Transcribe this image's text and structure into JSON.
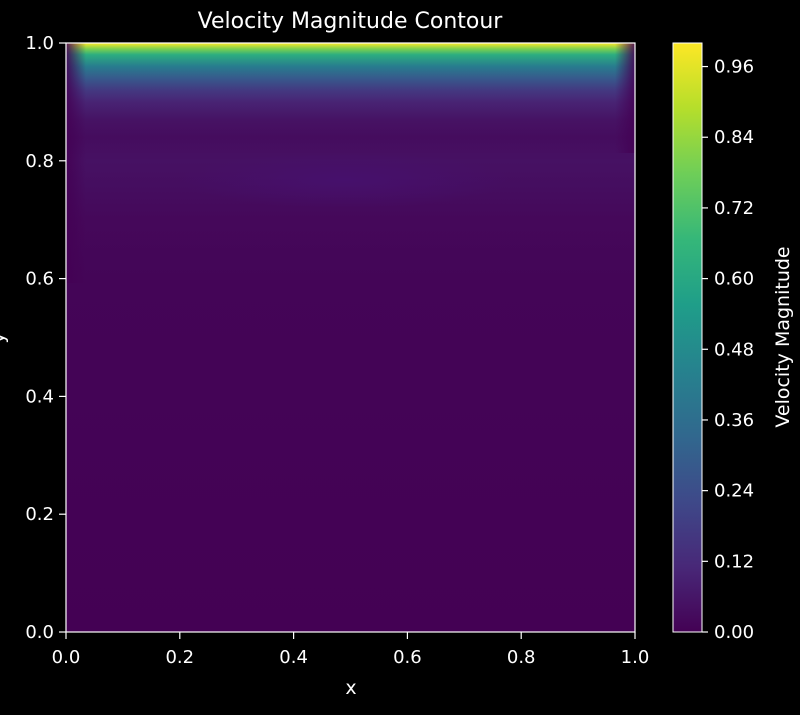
{
  "chart_data": {
    "type": "heatmap",
    "subtype": "filled-contour",
    "title": "Velocity Magnitude Contour",
    "xlabel": "x",
    "ylabel": "y",
    "xlim": [
      0.0,
      1.0
    ],
    "ylim": [
      0.0,
      1.0
    ],
    "x_ticks": [
      "0.0",
      "0.2",
      "0.4",
      "0.6",
      "0.8",
      "1.0"
    ],
    "y_ticks": [
      "0.0",
      "0.2",
      "0.4",
      "0.6",
      "0.8",
      "1.0"
    ],
    "colorbar": {
      "label": "Velocity Magnitude",
      "range": [
        0.0,
        1.0
      ],
      "ticks": [
        "0.00",
        "0.12",
        "0.24",
        "0.36",
        "0.48",
        "0.60",
        "0.72",
        "0.84",
        "0.96"
      ],
      "colormap": "viridis"
    },
    "profile_y": [
      1.0,
      0.99,
      0.98,
      0.96,
      0.94,
      0.92,
      0.9,
      0.87,
      0.84,
      0.8,
      0.75,
      0.7,
      0.6,
      0.0
    ],
    "profile_value": [
      1.0,
      0.8,
      0.62,
      0.42,
      0.28,
      0.17,
      0.1,
      0.05,
      0.03,
      0.045,
      0.035,
      0.02,
      0.01,
      0.0
    ],
    "grid": false,
    "background": "#000000",
    "foreground": "#ffffff",
    "colors": {
      "viridis_stops": [
        "#440154",
        "#482878",
        "#3e4989",
        "#31688e",
        "#26828e",
        "#1f9e89",
        "#35b779",
        "#6ece58",
        "#b5de2b",
        "#fde725"
      ]
    }
  }
}
